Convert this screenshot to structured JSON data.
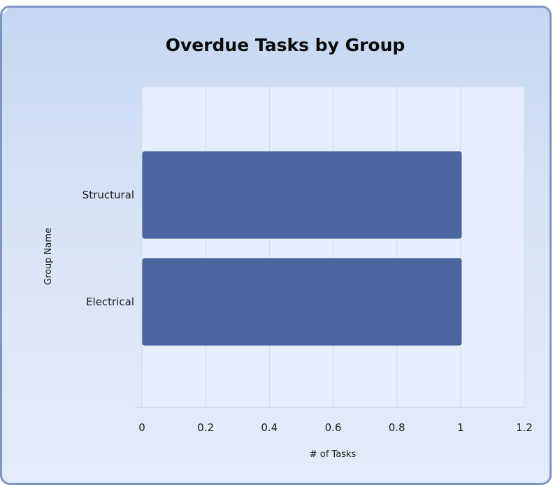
{
  "chart_data": {
    "type": "bar",
    "orientation": "horizontal",
    "title": "Overdue Tasks by Group",
    "xlabel": "# of Tasks",
    "ylabel": "Group Name",
    "categories": [
      "Structural",
      "Electrical"
    ],
    "values": [
      1,
      1
    ],
    "xlim": [
      0,
      1.2
    ],
    "xticks": [
      "0",
      "0.2",
      "0.4",
      "0.6",
      "0.8",
      "1",
      "1.2"
    ],
    "grid": true,
    "legend": "none",
    "colors": {
      "bar": "#4b66a0",
      "plot_bg": "#e6eefb",
      "grid": "#d3d9e3",
      "panel_border": "#7e95c2"
    }
  }
}
